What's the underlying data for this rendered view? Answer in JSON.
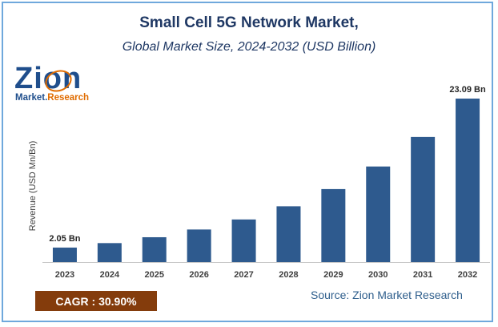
{
  "chart_data": {
    "type": "bar",
    "title": "Small Cell 5G Network Market,",
    "subtitle": "Global Market Size, 2024-2032 (USD Billion)",
    "ylabel": "Revenue (USD Mn/Bn)",
    "xlabel": "",
    "categories": [
      "2023",
      "2024",
      "2025",
      "2026",
      "2027",
      "2028",
      "2029",
      "2030",
      "2031",
      "2032"
    ],
    "values": [
      2.05,
      2.68,
      3.51,
      4.6,
      6.02,
      7.88,
      10.31,
      13.5,
      17.67,
      23.09
    ],
    "data_labels": [
      {
        "index": 0,
        "text": "2.05 Bn"
      },
      {
        "index": 9,
        "text": "23.09 Bn"
      }
    ],
    "ylim": [
      0,
      25
    ],
    "grid": false,
    "bar_color": "#2e5a8e"
  },
  "logo": {
    "name": "Zion",
    "line2_part1": "Market.",
    "line2_part2": "Research"
  },
  "cagr": {
    "label": "CAGR : 30.90%"
  },
  "source": {
    "text": "Source: Zion Market Research"
  },
  "colors": {
    "title": "#1f3864",
    "border": "#6fa8dc",
    "cagr_bg": "#843c0c",
    "source": "#2e5e8c"
  }
}
